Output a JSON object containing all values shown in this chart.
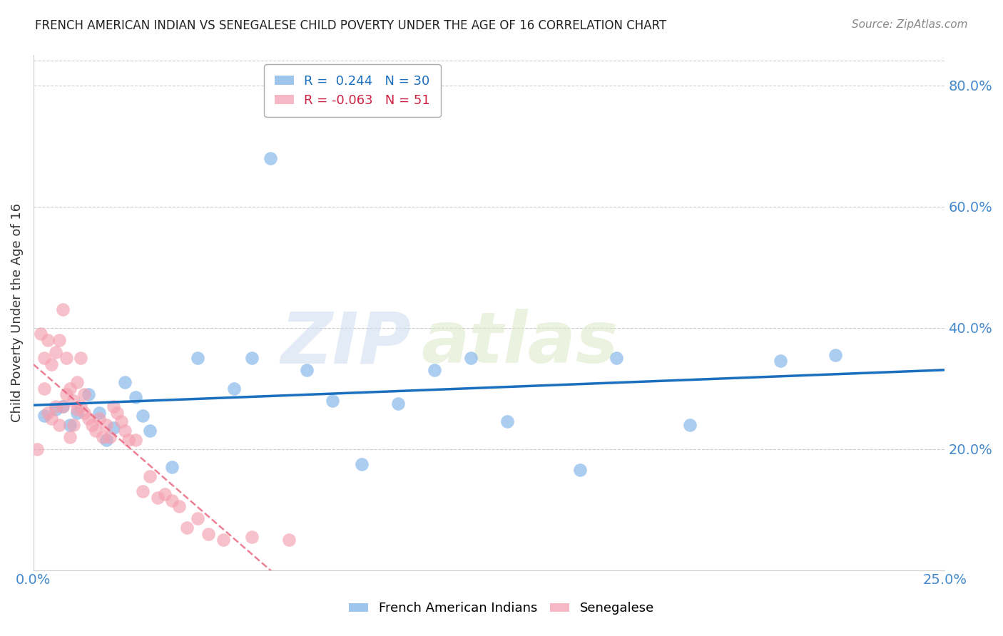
{
  "title": "FRENCH AMERICAN INDIAN VS SENEGALESE CHILD POVERTY UNDER THE AGE OF 16 CORRELATION CHART",
  "source": "Source: ZipAtlas.com",
  "ylabel": "Child Poverty Under the Age of 16",
  "x_min": 0.0,
  "x_max": 0.25,
  "y_min": 0.0,
  "y_max": 0.85,
  "y_ticks": [
    0.2,
    0.4,
    0.6,
    0.8
  ],
  "y_tick_labels": [
    "20.0%",
    "40.0%",
    "60.0%",
    "80.0%"
  ],
  "x_ticks": [
    0.0,
    0.05,
    0.1,
    0.15,
    0.2,
    0.25
  ],
  "x_tick_labels": [
    "0.0%",
    "",
    "",
    "",
    "",
    "25.0%"
  ],
  "blue_R": 0.244,
  "blue_N": 30,
  "pink_R": -0.063,
  "pink_N": 51,
  "blue_color": "#7EB3E8",
  "pink_color": "#F4A0B0",
  "blue_line_color": "#1A6FBF",
  "pink_line_color": "#E8607A",
  "legend_label_blue": "French American Indians",
  "legend_label_pink": "Senegalese",
  "watermark_zip": "ZIP",
  "watermark_atlas": "atlas",
  "blue_scatter_x": [
    0.003,
    0.006,
    0.008,
    0.01,
    0.012,
    0.015,
    0.018,
    0.02,
    0.022,
    0.025,
    0.028,
    0.03,
    0.032,
    0.038,
    0.045,
    0.055,
    0.06,
    0.065,
    0.075,
    0.082,
    0.09,
    0.1,
    0.11,
    0.12,
    0.13,
    0.15,
    0.16,
    0.18,
    0.205,
    0.22
  ],
  "blue_scatter_y": [
    0.255,
    0.265,
    0.27,
    0.24,
    0.26,
    0.29,
    0.26,
    0.215,
    0.235,
    0.31,
    0.285,
    0.255,
    0.23,
    0.17,
    0.35,
    0.3,
    0.35,
    0.68,
    0.33,
    0.28,
    0.175,
    0.275,
    0.33,
    0.35,
    0.245,
    0.165,
    0.35,
    0.24,
    0.345,
    0.355
  ],
  "pink_scatter_x": [
    0.001,
    0.002,
    0.003,
    0.003,
    0.004,
    0.004,
    0.005,
    0.005,
    0.006,
    0.006,
    0.007,
    0.007,
    0.008,
    0.008,
    0.009,
    0.009,
    0.01,
    0.01,
    0.011,
    0.011,
    0.012,
    0.012,
    0.013,
    0.013,
    0.014,
    0.014,
    0.015,
    0.016,
    0.017,
    0.018,
    0.019,
    0.02,
    0.021,
    0.022,
    0.023,
    0.024,
    0.025,
    0.026,
    0.028,
    0.03,
    0.032,
    0.034,
    0.036,
    0.038,
    0.04,
    0.042,
    0.045,
    0.048,
    0.052,
    0.06,
    0.07
  ],
  "pink_scatter_y": [
    0.2,
    0.39,
    0.3,
    0.35,
    0.26,
    0.38,
    0.25,
    0.34,
    0.27,
    0.36,
    0.24,
    0.38,
    0.27,
    0.43,
    0.29,
    0.35,
    0.22,
    0.3,
    0.24,
    0.28,
    0.265,
    0.31,
    0.27,
    0.35,
    0.29,
    0.26,
    0.25,
    0.24,
    0.23,
    0.25,
    0.22,
    0.24,
    0.22,
    0.27,
    0.26,
    0.245,
    0.23,
    0.215,
    0.215,
    0.13,
    0.155,
    0.12,
    0.125,
    0.115,
    0.105,
    0.07,
    0.085,
    0.06,
    0.05,
    0.055,
    0.05
  ]
}
